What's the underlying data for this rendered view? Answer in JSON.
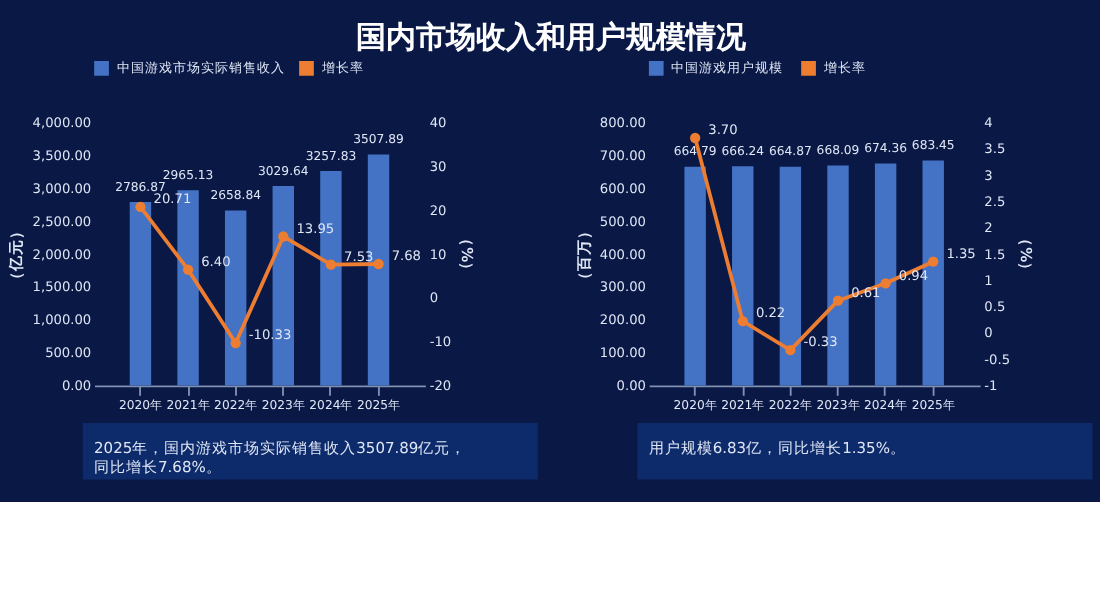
{
  "chart_data": [
    {
      "type": "bar",
      "title": "国内市场收入和用户规模情况",
      "categories": [
        "2020年",
        "2021年",
        "2022年",
        "2023年",
        "2024年",
        "2025年"
      ],
      "ylabel": "（亿元）",
      "y2label": "（%）",
      "ylim": [
        0,
        4000
      ],
      "yticks": [
        {
          "value": 0,
          "label": "0.00"
        },
        {
          "value": 500,
          "label": "500.00"
        },
        {
          "value": 1000,
          "label": "1,000.00"
        },
        {
          "value": 1500,
          "label": "1,500.00"
        },
        {
          "value": 2000,
          "label": "2,000.00"
        },
        {
          "value": 2500,
          "label": "2,500.00"
        },
        {
          "value": 3000,
          "label": "3,000.00"
        },
        {
          "value": 3500,
          "label": "3,500.00"
        },
        {
          "value": 4000,
          "label": "4,000.00"
        }
      ],
      "y2lim": [
        -20,
        40
      ],
      "y2ticks": [
        -20,
        -10,
        0,
        10,
        20,
        30,
        40
      ],
      "series": [
        {
          "name": "中国游戏市场实际销售收入",
          "color": "#4472c4",
          "values": [
            2786.87,
            2965.13,
            2658.84,
            3029.64,
            3257.83,
            3507.89
          ],
          "value_labels": [
            "2786.87",
            "2965.13",
            "2658.84",
            "3029.64",
            "3257.83",
            "3507.89"
          ]
        },
        {
          "name": "增长率",
          "type": "line",
          "axis": "y2",
          "color": "#ed7d31",
          "values": [
            20.71,
            6.4,
            -10.33,
            13.95,
            7.53,
            7.68
          ],
          "value_labels": [
            "20.71",
            "6.40",
            "-10.33",
            "13.95",
            "7.53",
            "7.68"
          ]
        }
      ],
      "marker": "circle",
      "line_style": "solid",
      "legend": "top",
      "grid": false,
      "annotations": [
        "2025年，国内游戏市场实际销售收入3507.89亿元，同比增长7.68%。"
      ]
    },
    {
      "type": "bar",
      "categories": [
        "2020年",
        "2021年",
        "2022年",
        "2023年",
        "2024年",
        "2025年"
      ],
      "ylabel": "（百万）",
      "y2label": "（%）",
      "ylim": [
        0,
        800
      ],
      "yticks": [
        {
          "value": 0,
          "label": "0.00"
        },
        {
          "value": 100,
          "label": "100.00"
        },
        {
          "value": 200,
          "label": "200.00"
        },
        {
          "value": 300,
          "label": "300.00"
        },
        {
          "value": 400,
          "label": "400.00"
        },
        {
          "value": 500,
          "label": "500.00"
        },
        {
          "value": 600,
          "label": "600.00"
        },
        {
          "value": 700,
          "label": "700.00"
        },
        {
          "value": 800,
          "label": "800.00"
        }
      ],
      "y2lim": [
        -1,
        4
      ],
      "y2ticks": [
        -1,
        -0.5,
        0,
        0.5,
        1,
        1.5,
        2,
        2.5,
        3,
        3.5,
        4
      ],
      "series": [
        {
          "name": "中国游戏用户规模",
          "color": "#4472c4",
          "values": [
            664.79,
            666.24,
            664.87,
            668.09,
            674.36,
            683.45
          ],
          "value_labels": [
            "664.79",
            "666.24",
            "664.87",
            "668.09",
            "674.36",
            "683.45"
          ]
        },
        {
          "name": "增长率",
          "type": "line",
          "axis": "y2",
          "color": "#ed7d31",
          "values": [
            3.7,
            0.22,
            -0.33,
            0.61,
            0.94,
            1.35
          ],
          "value_labels": [
            "3.70",
            "0.22",
            "-0.33",
            "0.61",
            "0.94",
            "1.35"
          ]
        }
      ],
      "marker": "circle",
      "line_style": "solid",
      "legend": "top",
      "grid": false,
      "annotations": [
        "用户规模6.83亿，同比增长1.35%。"
      ]
    }
  ]
}
